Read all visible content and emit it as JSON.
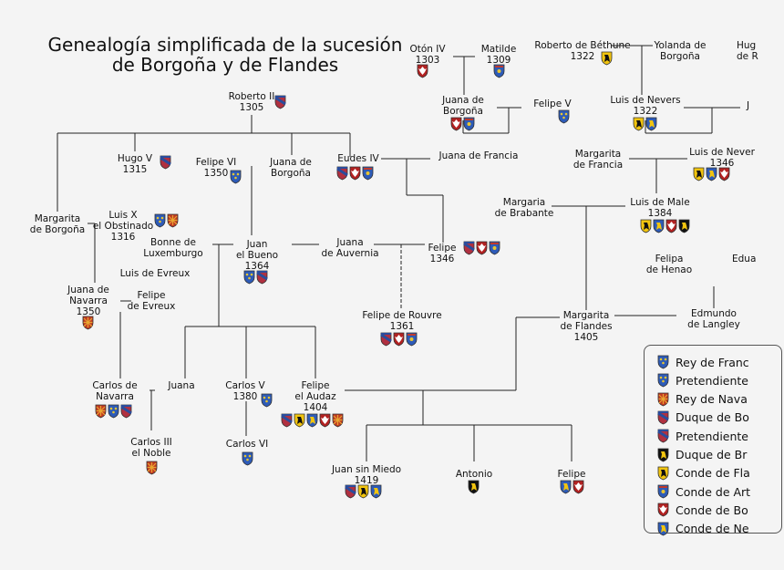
{
  "title": {
    "line1": "Genealogía simplificada de la sucesión",
    "line2": "de Borgoña y de Flandes"
  },
  "shield_palette": {
    "france": "#2d5bb8",
    "navarre": "#c0392b",
    "burgundy": "#9b1b2d",
    "brabant": "#111111",
    "flanders": "#e6c619",
    "artois": "#2d5bb8",
    "nevers": "#2d5bb8"
  },
  "people": [
    {
      "id": "oton",
      "label": "Otón IV\n1303",
      "shields": [
        "burgundy-county"
      ]
    },
    {
      "id": "matilde",
      "label": "Matilde\n1309",
      "shields": [
        "artois"
      ]
    },
    {
      "id": "roberto_bethune",
      "label": "Roberto de Béthune\n1322",
      "shields": [
        "flanders"
      ]
    },
    {
      "id": "yolanda",
      "label": "Yolanda de\nBorgoña",
      "shields": []
    },
    {
      "id": "hug_cut",
      "label": "Hug\nde R",
      "shields": []
    },
    {
      "id": "roberto2",
      "label": "Roberto II\n1305",
      "shields": [
        "burgundy"
      ]
    },
    {
      "id": "juana_borgona_top",
      "label": "Juana de\nBorgoña",
      "shields": [
        "burgundy-county",
        "artois"
      ]
    },
    {
      "id": "felipe_v",
      "label": "Felipe V",
      "shields": [
        "france"
      ]
    },
    {
      "id": "luis_nevers",
      "label": "Luis de Nevers\n1322",
      "shields": [
        "flanders",
        "nevers"
      ]
    },
    {
      "id": "j_cut",
      "label": "J",
      "shields": []
    },
    {
      "id": "hugo_v",
      "label": "Hugo V\n1315",
      "shields": [
        "burgundy"
      ]
    },
    {
      "id": "felipe_vi",
      "label": "Felipe VI\n1350",
      "shields": [
        "france"
      ]
    },
    {
      "id": "juana_borgona2",
      "label": "Juana de\nBorgoña",
      "shields": []
    },
    {
      "id": "eudes",
      "label": "Eudes IV",
      "shields": [
        "burgundy",
        "burgundy-county",
        "artois"
      ]
    },
    {
      "id": "juana_francia",
      "label": "Juana de Francia",
      "shields": []
    },
    {
      "id": "margarita_francia",
      "label": "Margarita\nde Francia",
      "shields": []
    },
    {
      "id": "luis_nevers2",
      "label": "Luis de Never\n1346",
      "shields": [
        "flanders",
        "nevers",
        "burgundy-county"
      ]
    },
    {
      "id": "margarita_borgona",
      "label": "Margarita\nde Borgoña",
      "shields": []
    },
    {
      "id": "luis_x",
      "label": "Luis X\nel Obstinado\n1316",
      "shields": [
        "france",
        "navarre"
      ]
    },
    {
      "id": "margaria_brabante",
      "label": "Margaria\nde Brabante",
      "shields": []
    },
    {
      "id": "luis_male",
      "label": "Luis de Male\n1384",
      "shields": [
        "flanders",
        "nevers",
        "burgundy-county",
        "brabant"
      ]
    },
    {
      "id": "bonne",
      "label": "Bonne de\nLuxemburgo",
      "shields": []
    },
    {
      "id": "juan_bueno",
      "label": "Juan\nel Bueno\n1364",
      "shields": [
        "france",
        "burgundy"
      ]
    },
    {
      "id": "juana_auvernia",
      "label": "Juana\nde Auvernia",
      "shields": []
    },
    {
      "id": "felipe_1346",
      "label": "Felipe\n1346",
      "shields": [
        "burgundy",
        "burgundy-county",
        "artois"
      ]
    },
    {
      "id": "felipa_henao",
      "label": "Felipa\nde Henao",
      "shields": []
    },
    {
      "id": "edu_cut",
      "label": "Edua",
      "shields": []
    },
    {
      "id": "luis_evreux",
      "label": "Luis de Evreux",
      "shields": []
    },
    {
      "id": "juana_navarra",
      "label": "Juana de\nNavarra\n1350",
      "shields": [
        "navarre"
      ]
    },
    {
      "id": "felipe_evreux",
      "label": "Felipe\nde Evreux",
      "shields": []
    },
    {
      "id": "felipe_rouvre",
      "label": "Felipe de Rouvre\n1361",
      "shields": [
        "burgundy",
        "burgundy-county",
        "artois"
      ]
    },
    {
      "id": "margarita_flandes",
      "label": "Margarita\nde Flandes\n1405",
      "shields": []
    },
    {
      "id": "edmundo",
      "label": "Edmundo\nde Langley",
      "shields": []
    },
    {
      "id": "carlos_navarra",
      "label": "Carlos de\nNavarra",
      "shields": [
        "navarre",
        "france",
        "burgundy"
      ]
    },
    {
      "id": "juana",
      "label": "Juana",
      "shields": []
    },
    {
      "id": "carlos_v",
      "label": "Carlos V\n1380",
      "shields": [
        "france"
      ]
    },
    {
      "id": "felipe_audaz",
      "label": "Felipe\nel Audaz\n1404",
      "shields": [
        "burgundy",
        "flanders",
        "nevers",
        "burgundy-county",
        "navarre"
      ]
    },
    {
      "id": "carlos_iii",
      "label": "Carlos III\nel Noble",
      "shields": [
        "navarre"
      ]
    },
    {
      "id": "carlos_vi",
      "label": "Carlos VI",
      "shields": [
        "france"
      ]
    },
    {
      "id": "juan_sin_miedo",
      "label": "Juan sin Miedo\n1419",
      "shields": [
        "burgundy",
        "flanders",
        "nevers"
      ]
    },
    {
      "id": "antonio",
      "label": "Antonio",
      "shields": [
        "brabant"
      ]
    },
    {
      "id": "felipe_last",
      "label": "Felipe",
      "shields": [
        "nevers",
        "burgundy-county"
      ]
    }
  ],
  "legend": [
    {
      "label": "Rey de Franc",
      "shield": "france"
    },
    {
      "label": "Pretendiente",
      "shield": "france"
    },
    {
      "label": "Rey de Nava",
      "shield": "navarre"
    },
    {
      "label": "Duque de Bo",
      "shield": "burgundy"
    },
    {
      "label": "Pretendiente",
      "shield": "burgundy"
    },
    {
      "label": "Duque de Br",
      "shield": "brabant"
    },
    {
      "label": "Conde de Fla",
      "shield": "flanders"
    },
    {
      "label": "Conde de Art",
      "shield": "artois"
    },
    {
      "label": "Conde de Bo",
      "shield": "burgundy-county"
    },
    {
      "label": "Conde de Ne",
      "shield": "nevers"
    }
  ]
}
